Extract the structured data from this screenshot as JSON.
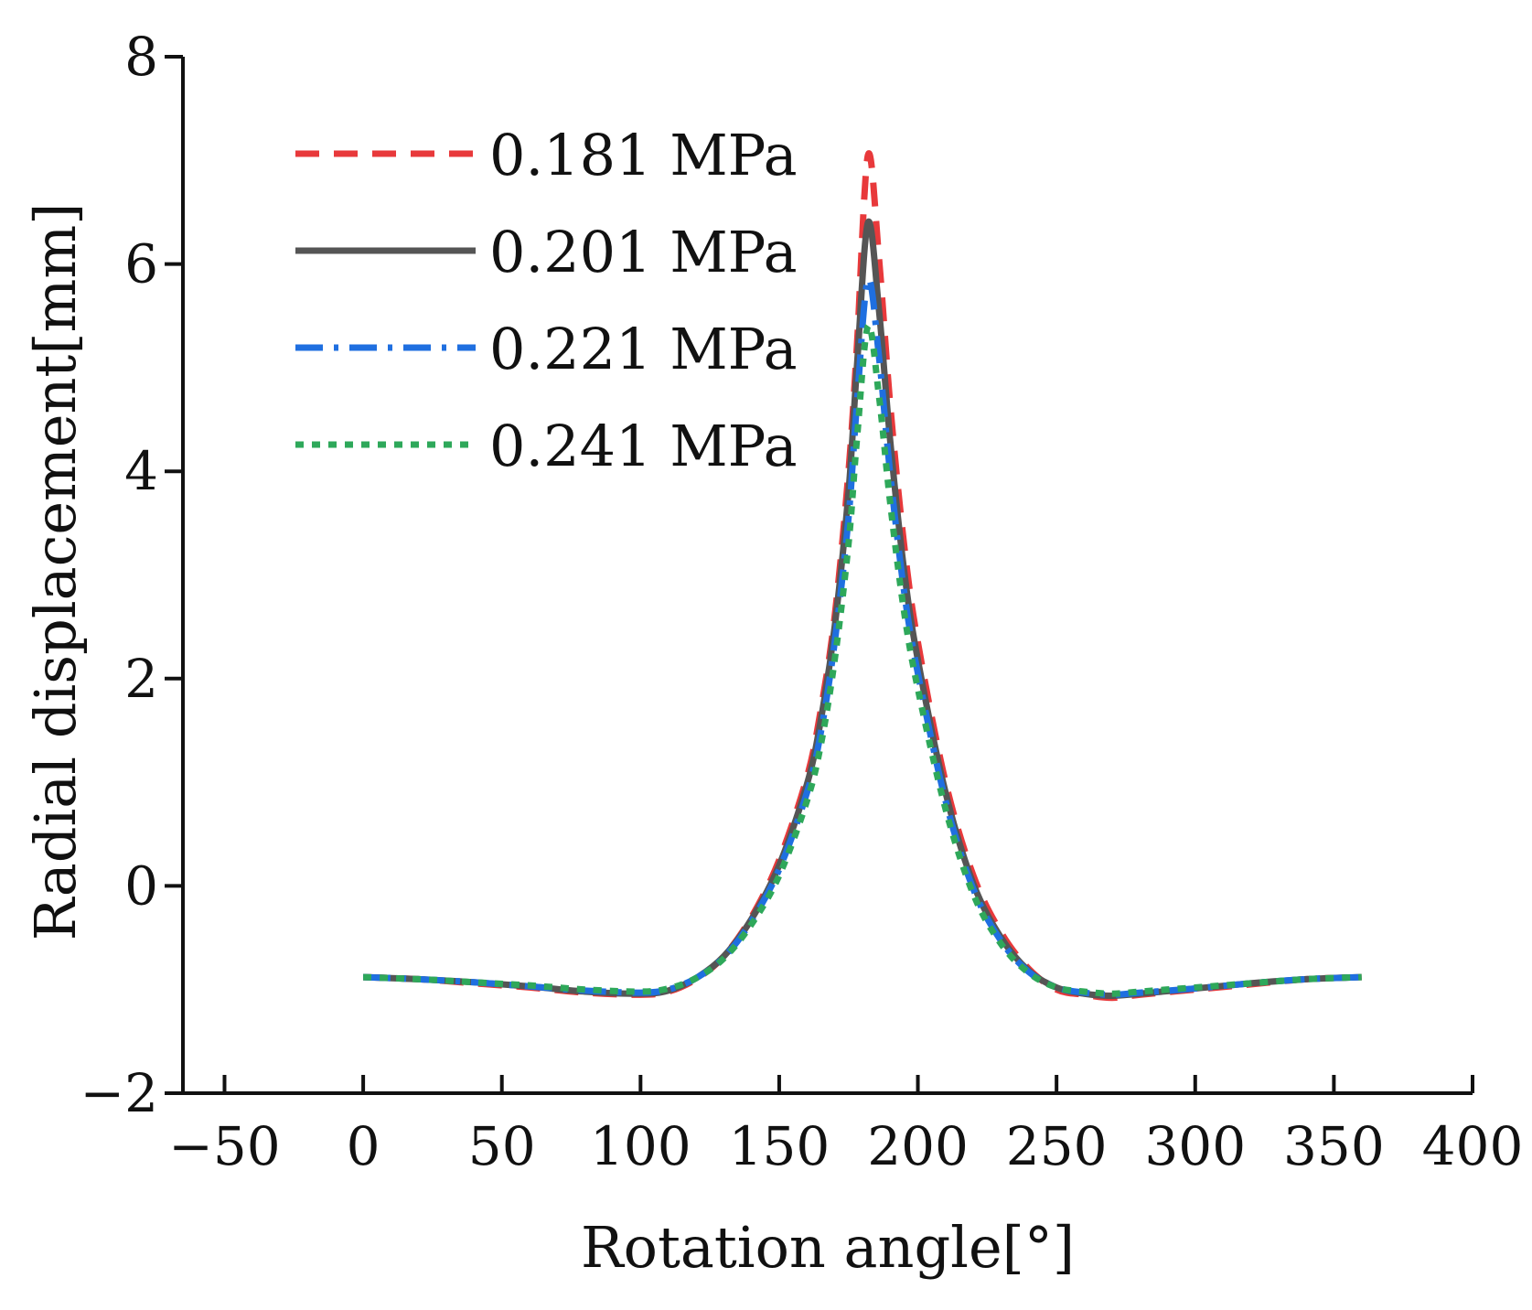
{
  "chart_data": {
    "type": "line",
    "title": "",
    "xlabel": "Rotation angle[°]",
    "ylabel": "Radial displacement[mm]",
    "xlim": [
      -65,
      400
    ],
    "ylim": [
      -2,
      8
    ],
    "x_ticks": [
      -50,
      0,
      50,
      100,
      150,
      200,
      250,
      300,
      350,
      400
    ],
    "x_tick_labels": [
      "−50",
      "0",
      "50",
      "100",
      "150",
      "200",
      "250",
      "300",
      "350",
      "400"
    ],
    "y_ticks": [
      -2,
      0,
      2,
      4,
      6,
      8
    ],
    "y_tick_labels": [
      "−2",
      "0",
      "2",
      "4",
      "6",
      "8"
    ],
    "grid": false,
    "legend_position": "top-left",
    "x": [
      0,
      20,
      40,
      60,
      80,
      100,
      110,
      120,
      130,
      140,
      150,
      160,
      165,
      170,
      175,
      178,
      182,
      186,
      190,
      195,
      200,
      210,
      220,
      230,
      240,
      250,
      260,
      270,
      280,
      300,
      320,
      340,
      360
    ],
    "series": [
      {
        "name": "0.181 MPa",
        "color": "#e8393b",
        "dash": "dashed",
        "values": [
          -0.88,
          -0.9,
          -0.94,
          -0.98,
          -1.03,
          -1.05,
          -1.02,
          -0.9,
          -0.68,
          -0.3,
          0.25,
          1.05,
          1.7,
          2.6,
          4.0,
          5.2,
          7.05,
          6.05,
          4.65,
          3.3,
          2.35,
          1.0,
          0.1,
          -0.45,
          -0.8,
          -1.0,
          -1.05,
          -1.08,
          -1.05,
          -1.0,
          -0.95,
          -0.9,
          -0.88
        ]
      },
      {
        "name": "0.201 MPa",
        "color": "#555555",
        "dash": "solid",
        "values": [
          -0.88,
          -0.9,
          -0.93,
          -0.97,
          -1.02,
          -1.04,
          -1.01,
          -0.89,
          -0.68,
          -0.32,
          0.2,
          0.98,
          1.6,
          2.5,
          3.8,
          5.0,
          6.4,
          5.55,
          4.3,
          3.05,
          2.18,
          0.9,
          0.02,
          -0.5,
          -0.82,
          -0.98,
          -1.04,
          -1.06,
          -1.04,
          -0.99,
          -0.94,
          -0.9,
          -0.88
        ]
      },
      {
        "name": "0.221 MPa",
        "color": "#1f6fe0",
        "dash": "dashdot",
        "values": [
          -0.88,
          -0.9,
          -0.93,
          -0.97,
          -1.01,
          -1.03,
          -1.0,
          -0.89,
          -0.69,
          -0.34,
          0.16,
          0.9,
          1.48,
          2.35,
          3.55,
          4.65,
          5.85,
          5.1,
          3.98,
          2.85,
          2.05,
          0.82,
          -0.03,
          -0.53,
          -0.83,
          -0.98,
          -1.03,
          -1.05,
          -1.03,
          -0.99,
          -0.94,
          -0.9,
          -0.88
        ]
      },
      {
        "name": "0.241 MPa",
        "color": "#2ea85a",
        "dash": "dotted",
        "values": [
          -0.88,
          -0.9,
          -0.93,
          -0.96,
          -1.0,
          -1.02,
          -0.99,
          -0.89,
          -0.7,
          -0.37,
          0.1,
          0.82,
          1.36,
          2.18,
          3.3,
          4.3,
          5.4,
          4.72,
          3.7,
          2.65,
          1.9,
          0.74,
          -0.08,
          -0.56,
          -0.84,
          -0.98,
          -1.02,
          -1.04,
          -1.02,
          -0.98,
          -0.94,
          -0.9,
          -0.88
        ]
      }
    ]
  }
}
